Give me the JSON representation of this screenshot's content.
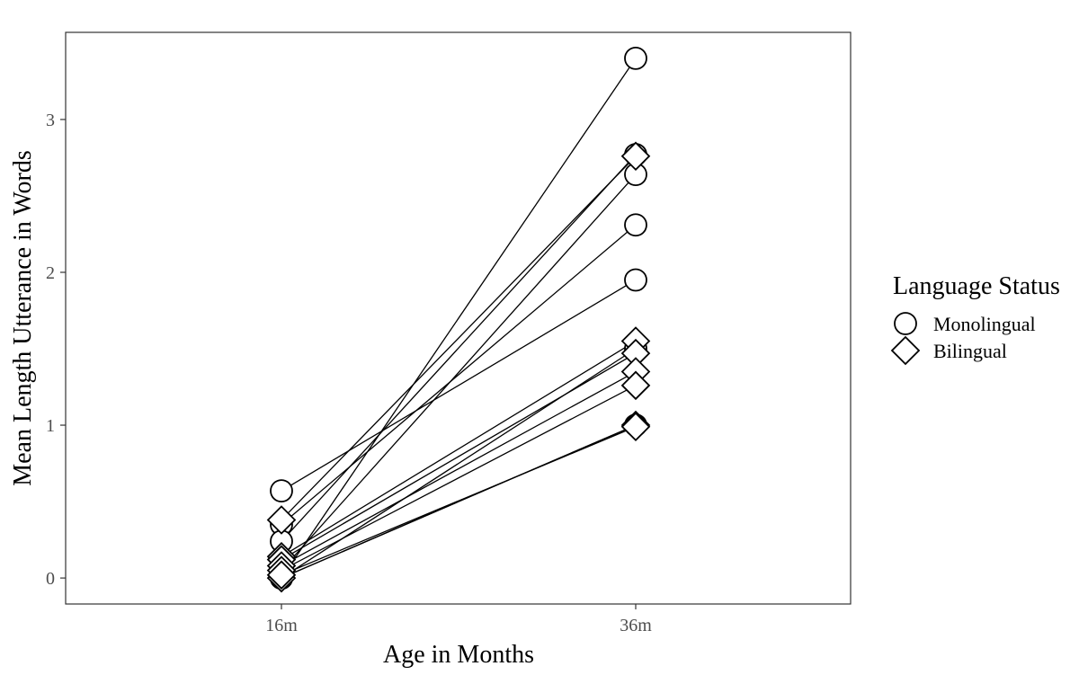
{
  "chart_data": {
    "type": "line",
    "categories": [
      "16m",
      "36m"
    ],
    "xlabel": "Age in Months",
    "ylabel": "Mean Length Utterance in Words",
    "ylim": [
      -0.17,
      3.57
    ],
    "yticks": [
      0,
      1,
      2,
      3
    ],
    "grid": false,
    "legend": {
      "title": "Language Status",
      "placement": "right",
      "entries": [
        {
          "label": "Monolingual",
          "shape": "circle"
        },
        {
          "label": "Bilingual",
          "shape": "diamond"
        }
      ]
    },
    "series": [
      {
        "group": "Monolingual",
        "values": [
          0.0,
          3.4
        ]
      },
      {
        "group": "Monolingual",
        "values": [
          0.57,
          1.95
        ]
      },
      {
        "group": "Monolingual",
        "values": [
          0.35,
          2.31
        ]
      },
      {
        "group": "Monolingual",
        "values": [
          0.24,
          2.77
        ]
      },
      {
        "group": "Monolingual",
        "values": [
          0.05,
          2.64
        ]
      },
      {
        "group": "Monolingual",
        "values": [
          0.0,
          1.5
        ]
      },
      {
        "group": "Monolingual",
        "values": [
          0.0,
          1.0
        ]
      },
      {
        "group": "Bilingual",
        "values": [
          0.38,
          2.76
        ]
      },
      {
        "group": "Bilingual",
        "values": [
          0.14,
          1.55
        ]
      },
      {
        "group": "Bilingual",
        "values": [
          0.12,
          1.47
        ]
      },
      {
        "group": "Bilingual",
        "values": [
          0.08,
          1.35
        ]
      },
      {
        "group": "Bilingual",
        "values": [
          0.05,
          1.26
        ]
      },
      {
        "group": "Bilingual",
        "values": [
          0.0,
          1.0
        ]
      },
      {
        "group": "Bilingual",
        "values": [
          0.02,
          0.99
        ]
      }
    ]
  }
}
